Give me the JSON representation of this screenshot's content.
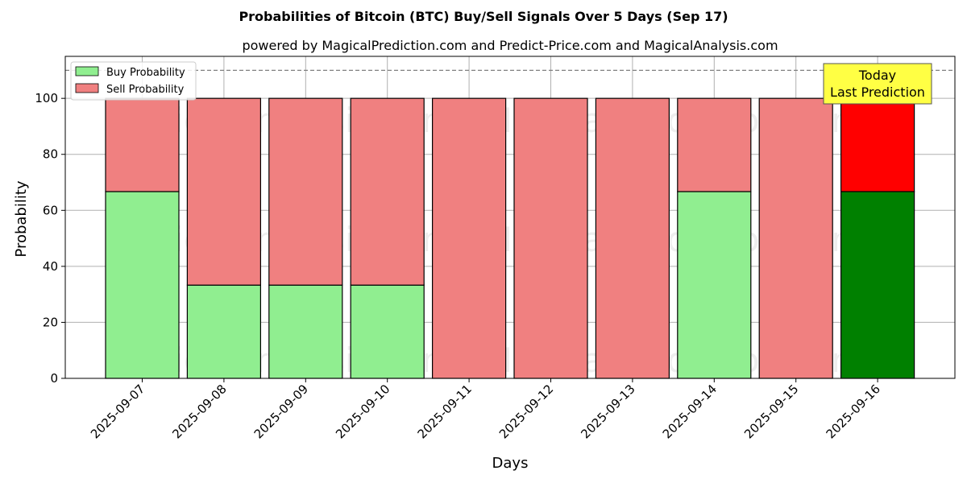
{
  "chart_data": {
    "type": "bar",
    "stacked": true,
    "title": "Probabilities of Bitcoin (BTC) Buy/Sell Signals Over 5 Days (Sep 17)",
    "subtitle": "powered by MagicalPrediction.com and Predict-Price.com and MagicalAnalysis.com",
    "xlabel": "Days",
    "ylabel": "Probability",
    "ylim": [
      0,
      115
    ],
    "yticks": [
      0,
      20,
      40,
      60,
      80,
      100
    ],
    "reference_line": 110,
    "grid": true,
    "legend_position": "top-left",
    "categories": [
      "2025-09-07",
      "2025-09-08",
      "2025-09-09",
      "2025-09-10",
      "2025-09-11",
      "2025-09-12",
      "2025-09-13",
      "2025-09-14",
      "2025-09-15",
      "2025-09-16"
    ],
    "series": [
      {
        "name": "Buy Probability",
        "values": [
          66.7,
          33.3,
          33.3,
          33.3,
          0,
          0,
          0,
          66.7,
          0,
          66.7
        ]
      },
      {
        "name": "Sell Probability",
        "values": [
          33.3,
          66.7,
          66.7,
          66.7,
          100,
          100,
          100,
          33.3,
          100,
          33.3
        ]
      }
    ],
    "annotation": {
      "line1": "Today",
      "line2": "Last Prediction"
    },
    "watermarks": [
      "MagicalAnalysis.com",
      "MagicalPrediction.com"
    ]
  },
  "colors": {
    "buy": "#90ee90",
    "sell": "#f08080",
    "buy_highlight": "#008000",
    "sell_highlight": "#ff0000",
    "annotation_bg": "#ffff44",
    "grid": "#b0b0b0"
  }
}
